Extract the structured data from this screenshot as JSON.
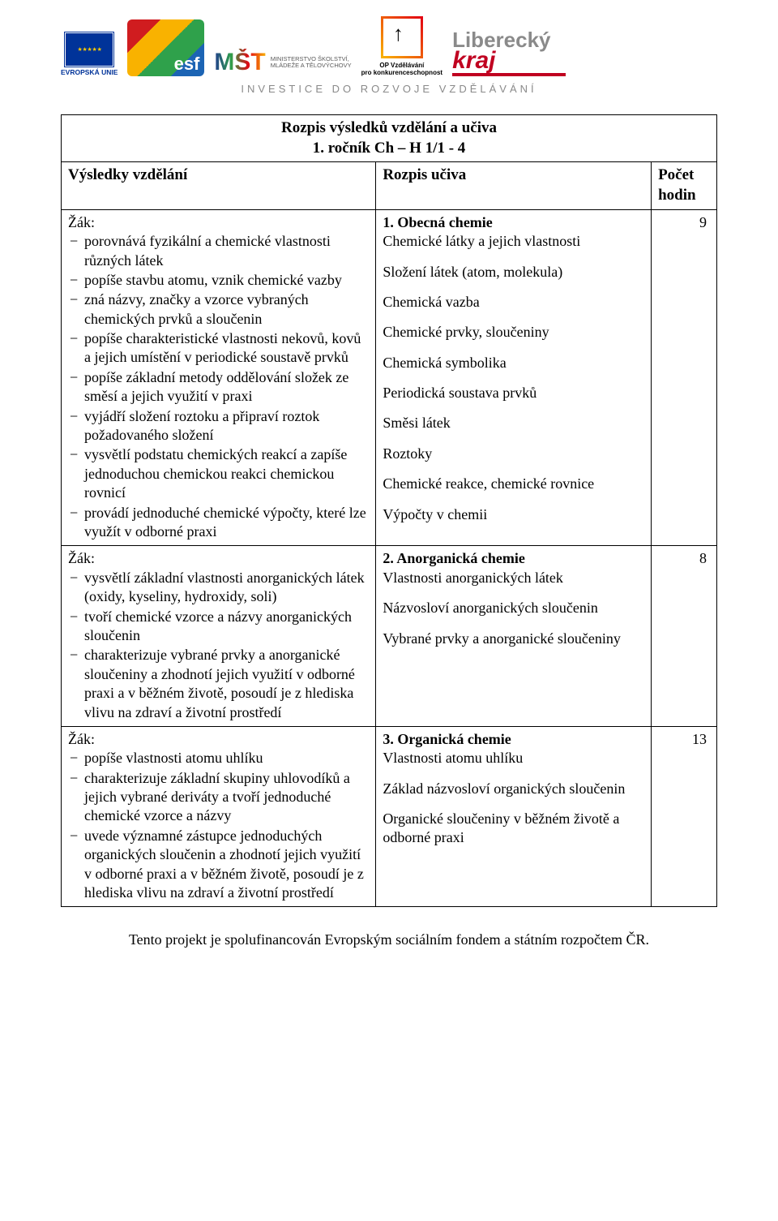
{
  "colors": {
    "text": "#000000",
    "background": "#ffffff",
    "border": "#000000",
    "tagline_gray": "#8a8a8a",
    "eu_blue": "#003399",
    "eu_gold": "#ffcc00",
    "kraj_red": "#c00020"
  },
  "logos": {
    "eu_label": "EVROPSKÁ UNIE",
    "msmt_text": "MINISTERSTVO ŠKOLSTVÍ,\nMLÁDEŽE A TĚLOVÝCHOVY",
    "op_text": "OP Vzdělávání\npro konkurenceschopnost",
    "kraj_top": "Liberecký",
    "kraj_bot": "kraj"
  },
  "tagline": "INVESTICE DO ROZVOJE VZDĚLÁVÁNÍ",
  "table": {
    "title_line1": "Rozpis výsledků vzdělání a učiva",
    "title_line2": "1. ročník Ch – H 1/1 - 4",
    "headers": {
      "results": "Výsledky vzdělání",
      "content": "Rozpis učiva",
      "hours": "Počet hodin"
    },
    "rows": [
      {
        "student_label": "Žák:",
        "outcomes": [
          "porovnává fyzikální a chemické vlastnosti různých látek",
          "popíše stavbu atomu, vznik chemické vazby",
          "zná názvy, značky a vzorce vybraných chemických prvků a sloučenin",
          "popíše charakteristické vlastnosti nekovů, kovů a jejich umístění v periodické soustavě prvků",
          "popíše základní metody oddělování složek ze směsí a jejich využití v praxi",
          "vyjádří složení roztoku a připraví roztok požadovaného složení",
          "vysvětlí podstatu chemických reakcí a zapíše jednoduchou chemickou reakci chemickou rovnicí",
          "provádí jednoduché chemické výpočty, které lze využít v odborné praxi"
        ],
        "topic_title": "1. Obecná chemie",
        "topics": [
          "Chemické látky a jejich vlastnosti",
          "Složení látek (atom, molekula)",
          "Chemická vazba",
          "Chemické prvky, sloučeniny",
          "Chemická symbolika",
          "Periodická soustava prvků",
          "Směsi látek",
          "Roztoky",
          "Chemické reakce, chemické rovnice",
          "Výpočty v chemii"
        ],
        "hours": "9"
      },
      {
        "student_label": "Žák:",
        "outcomes": [
          "vysvětlí základní vlastnosti anorganických látek (oxidy, kyseliny, hydroxidy, soli)",
          "tvoří chemické vzorce a názvy anorganických sloučenin",
          "charakterizuje vybrané prvky a anorganické sloučeniny a zhodnotí jejich využití v odborné praxi a v běžném životě, posoudí je z hlediska vlivu na zdraví a životní prostředí"
        ],
        "topic_title": "2. Anorganická chemie",
        "topics": [
          "Vlastnosti anorganických látek",
          "Názvosloví anorganických sloučenin",
          "Vybrané prvky a anorganické sloučeniny"
        ],
        "hours": "8"
      },
      {
        "student_label": "Žák:",
        "outcomes": [
          "popíše vlastnosti atomu uhlíku",
          "charakterizuje základní skupiny uhlovodíků a jejich vybrané deriváty a tvoří jednoduché chemické vzorce a názvy",
          "uvede významné zástupce jednoduchých organických sloučenin a zhodnotí jejich využití v odborné praxi a v běžném životě, posoudí je z hlediska vlivu na zdraví a životní prostředí"
        ],
        "topic_title": "3. Organická chemie",
        "topics": [
          "Vlastnosti atomu uhlíku",
          "Základ názvosloví organických sloučenin",
          "Organické sloučeniny v běžném životě a odborné praxi"
        ],
        "hours": "13"
      }
    ]
  },
  "footer": "Tento projekt je spolufinancován Evropským sociálním fondem a státním rozpočtem ČR."
}
